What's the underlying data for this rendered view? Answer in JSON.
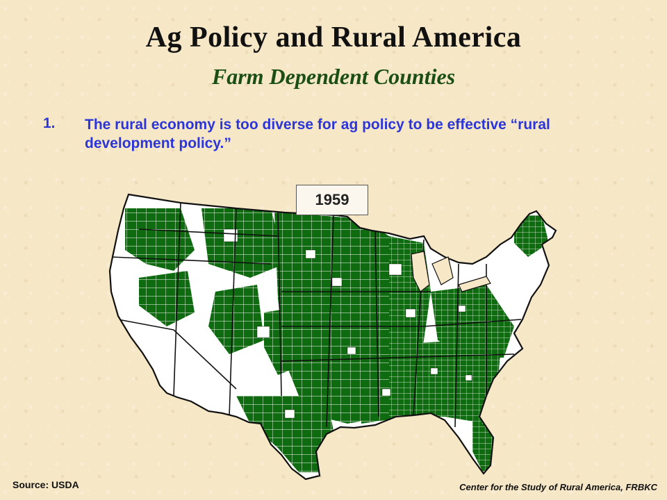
{
  "slide": {
    "title": "Ag Policy and Rural America",
    "subtitle": "Farm Dependent  Counties",
    "point_number": "1.",
    "point_text": "The rural economy is too diverse for ag policy to be effective “rural development policy.”"
  },
  "map": {
    "year": "1959",
    "fill_color": "#0f6b0f",
    "land_color": "#ffffff",
    "border_color": "#111111"
  },
  "footer": {
    "source": "Source: USDA",
    "credit": "Center for the Study of Rural America, FRBKC"
  }
}
